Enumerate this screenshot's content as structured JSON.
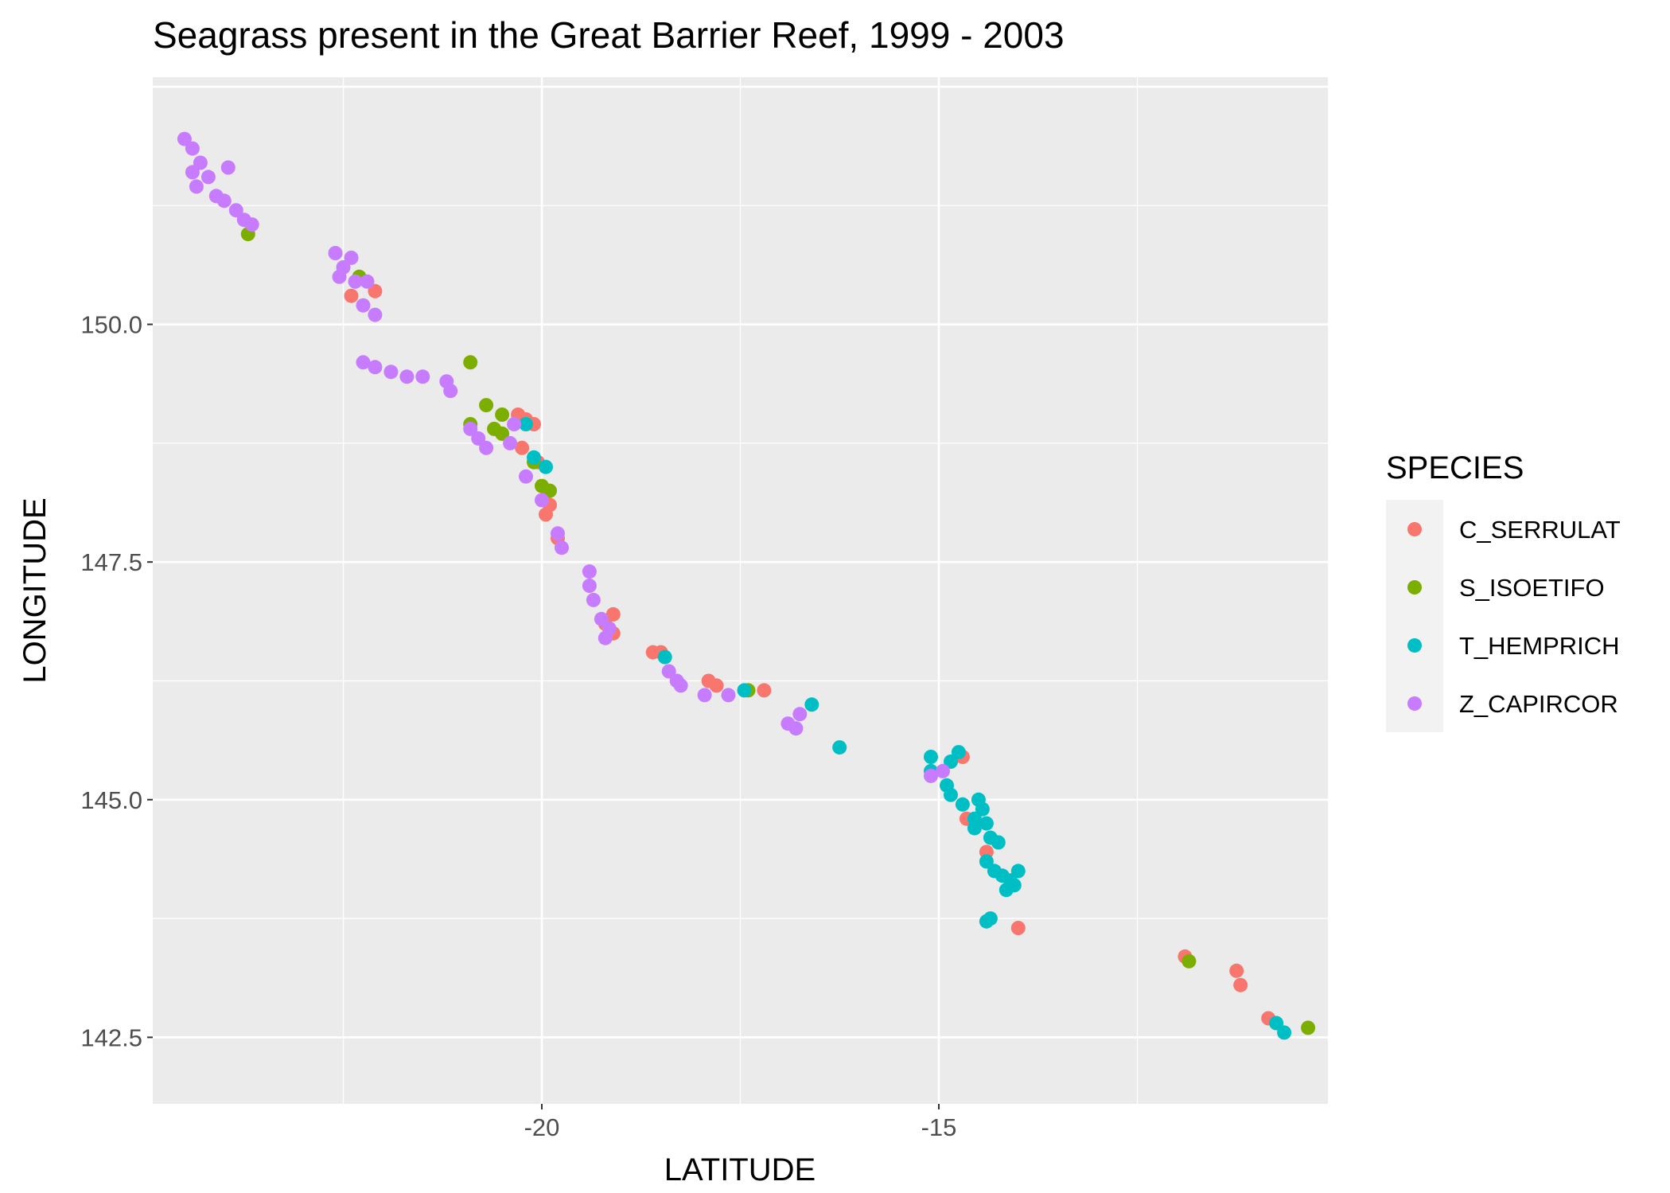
{
  "chart_data": {
    "type": "scatter",
    "title": "Seagrass present in the Great Barrier Reef, 1999 - 2003",
    "xlabel": "LATITUDE",
    "ylabel": "LONGITUDE",
    "xlim": [
      -24.9,
      -10.1
    ],
    "ylim": [
      141.8,
      152.6
    ],
    "x_ticks": [
      -20,
      -15
    ],
    "x_tick_labels": [
      "-20",
      "-15"
    ],
    "y_ticks": [
      142.5,
      145.0,
      147.5,
      150.0
    ],
    "y_tick_labels": [
      "142.5",
      "145.0",
      "147.5",
      "150.0"
    ],
    "grid": true,
    "legend": {
      "title": "SPECIES",
      "position": "right"
    },
    "series": [
      {
        "name": "C_SERRULAT",
        "color": "#F8766D",
        "points": [
          [
            -22.4,
            150.3
          ],
          [
            -22.1,
            150.35
          ],
          [
            -20.3,
            149.05
          ],
          [
            -20.2,
            149.0
          ],
          [
            -20.1,
            148.95
          ],
          [
            -20.25,
            148.7
          ],
          [
            -20.05,
            148.55
          ],
          [
            -19.9,
            148.1
          ],
          [
            -19.95,
            148.0
          ],
          [
            -19.8,
            147.75
          ],
          [
            -19.1,
            146.95
          ],
          [
            -19.2,
            146.85
          ],
          [
            -19.1,
            146.75
          ],
          [
            -18.6,
            146.55
          ],
          [
            -18.5,
            146.55
          ],
          [
            -17.9,
            146.25
          ],
          [
            -17.8,
            146.2
          ],
          [
            -17.2,
            146.15
          ],
          [
            -14.7,
            145.45
          ],
          [
            -14.65,
            144.8
          ],
          [
            -14.4,
            144.45
          ],
          [
            -14.0,
            143.65
          ],
          [
            -11.9,
            143.35
          ],
          [
            -11.25,
            143.2
          ],
          [
            -11.2,
            143.05
          ],
          [
            -10.85,
            142.7
          ]
        ]
      },
      {
        "name": "S_ISOETIFO",
        "color": "#7CAE00",
        "points": [
          [
            -23.7,
            150.95
          ],
          [
            -22.3,
            150.5
          ],
          [
            -20.9,
            149.6
          ],
          [
            -20.7,
            149.15
          ],
          [
            -20.5,
            149.05
          ],
          [
            -20.6,
            148.9
          ],
          [
            -20.9,
            148.95
          ],
          [
            -20.5,
            148.85
          ],
          [
            -20.1,
            148.55
          ],
          [
            -20.0,
            148.3
          ],
          [
            -19.9,
            148.25
          ],
          [
            -17.4,
            146.15
          ],
          [
            -11.85,
            143.3
          ],
          [
            -10.35,
            142.6
          ]
        ]
      },
      {
        "name": "T_HEMPRICH",
        "color": "#00BFC4",
        "points": [
          [
            -20.2,
            148.95
          ],
          [
            -20.1,
            148.6
          ],
          [
            -19.95,
            148.5
          ],
          [
            -18.45,
            146.5
          ],
          [
            -17.45,
            146.15
          ],
          [
            -16.6,
            146.0
          ],
          [
            -16.25,
            145.55
          ],
          [
            -15.1,
            145.45
          ],
          [
            -15.1,
            145.3
          ],
          [
            -14.85,
            145.4
          ],
          [
            -14.75,
            145.5
          ],
          [
            -14.9,
            145.15
          ],
          [
            -14.85,
            145.05
          ],
          [
            -14.7,
            144.95
          ],
          [
            -14.5,
            145.0
          ],
          [
            -14.45,
            144.9
          ],
          [
            -14.55,
            144.8
          ],
          [
            -14.4,
            144.75
          ],
          [
            -14.55,
            144.7
          ],
          [
            -14.35,
            144.6
          ],
          [
            -14.25,
            144.55
          ],
          [
            -14.4,
            144.35
          ],
          [
            -14.3,
            144.25
          ],
          [
            -14.2,
            144.2
          ],
          [
            -14.1,
            144.15
          ],
          [
            -14.0,
            144.25
          ],
          [
            -14.15,
            144.05
          ],
          [
            -14.05,
            144.1
          ],
          [
            -14.35,
            143.75
          ],
          [
            -14.4,
            143.72
          ],
          [
            -10.75,
            142.65
          ],
          [
            -10.65,
            142.55
          ]
        ]
      },
      {
        "name": "Z_CAPIRCOR",
        "color": "#C77CFF",
        "points": [
          [
            -24.5,
            151.95
          ],
          [
            -24.4,
            151.85
          ],
          [
            -24.3,
            151.7
          ],
          [
            -24.4,
            151.6
          ],
          [
            -24.2,
            151.55
          ],
          [
            -24.35,
            151.45
          ],
          [
            -24.1,
            151.35
          ],
          [
            -24.0,
            151.3
          ],
          [
            -23.85,
            151.2
          ],
          [
            -23.75,
            151.1
          ],
          [
            -23.65,
            151.05
          ],
          [
            -23.95,
            151.65
          ],
          [
            -22.6,
            150.75
          ],
          [
            -22.5,
            150.6
          ],
          [
            -22.4,
            150.7
          ],
          [
            -22.55,
            150.5
          ],
          [
            -22.35,
            150.45
          ],
          [
            -22.2,
            150.45
          ],
          [
            -22.25,
            150.2
          ],
          [
            -22.1,
            150.1
          ],
          [
            -22.25,
            149.6
          ],
          [
            -22.1,
            149.55
          ],
          [
            -21.9,
            149.5
          ],
          [
            -21.7,
            149.45
          ],
          [
            -21.5,
            149.45
          ],
          [
            -21.2,
            149.4
          ],
          [
            -21.15,
            149.3
          ],
          [
            -20.9,
            148.9
          ],
          [
            -20.8,
            148.8
          ],
          [
            -20.7,
            148.7
          ],
          [
            -20.4,
            148.75
          ],
          [
            -20.35,
            148.95
          ],
          [
            -20.2,
            148.4
          ],
          [
            -20.0,
            148.15
          ],
          [
            -19.8,
            147.8
          ],
          [
            -19.75,
            147.65
          ],
          [
            -19.4,
            147.4
          ],
          [
            -19.4,
            147.25
          ],
          [
            -19.35,
            147.1
          ],
          [
            -19.25,
            146.9
          ],
          [
            -19.15,
            146.8
          ],
          [
            -19.2,
            146.7
          ],
          [
            -18.4,
            146.35
          ],
          [
            -18.3,
            146.25
          ],
          [
            -18.25,
            146.2
          ],
          [
            -17.95,
            146.1
          ],
          [
            -17.65,
            146.1
          ],
          [
            -16.75,
            145.9
          ],
          [
            -16.9,
            145.8
          ],
          [
            -16.8,
            145.75
          ],
          [
            -15.1,
            145.25
          ],
          [
            -14.95,
            145.3
          ]
        ]
      }
    ]
  }
}
